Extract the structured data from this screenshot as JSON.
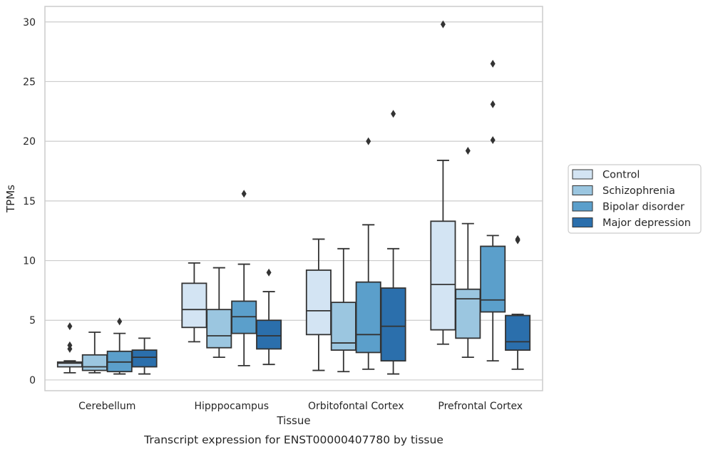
{
  "chart_data": {
    "type": "box",
    "caption": "Transcript expression for ENST00000407780 by tissue",
    "xlabel": "Tissue",
    "ylabel": "TPMs",
    "ylim": [
      -0.9,
      31.3
    ],
    "yticks": [
      0,
      5,
      10,
      15,
      20,
      25,
      30
    ],
    "grid": "horizontal",
    "legend_position": "right",
    "categories": [
      "Cerebellum",
      "Hipppocampus",
      "Orbitofontal Cortex",
      "Prefrontal Cortex"
    ],
    "series": [
      {
        "name": "Control",
        "color": "#d3e4f3",
        "boxes": [
          {
            "whisker_low": 0.6,
            "q1": 1.1,
            "median": 1.4,
            "q3": 1.5,
            "whisker_high": 1.6,
            "outliers": [
              2.6,
              2.9,
              4.5
            ]
          },
          {
            "whisker_low": 3.2,
            "q1": 4.4,
            "median": 5.9,
            "q3": 8.1,
            "whisker_high": 9.8,
            "outliers": []
          },
          {
            "whisker_low": 0.8,
            "q1": 3.8,
            "median": 5.8,
            "q3": 9.2,
            "whisker_high": 11.8,
            "outliers": []
          },
          {
            "whisker_low": 3.0,
            "q1": 4.2,
            "median": 8.0,
            "q3": 13.3,
            "whisker_high": 18.4,
            "outliers": [
              29.8
            ]
          }
        ]
      },
      {
        "name": "Schizophrenia",
        "color": "#9bc6e0",
        "boxes": [
          {
            "whisker_low": 0.6,
            "q1": 0.8,
            "median": 1.1,
            "q3": 2.1,
            "whisker_high": 4.0,
            "outliers": []
          },
          {
            "whisker_low": 1.9,
            "q1": 2.7,
            "median": 3.7,
            "q3": 5.9,
            "whisker_high": 9.4,
            "outliers": []
          },
          {
            "whisker_low": 0.7,
            "q1": 2.5,
            "median": 3.1,
            "q3": 6.5,
            "whisker_high": 11.0,
            "outliers": []
          },
          {
            "whisker_low": 1.9,
            "q1": 3.5,
            "median": 6.8,
            "q3": 7.6,
            "whisker_high": 13.1,
            "outliers": [
              19.2
            ]
          }
        ]
      },
      {
        "name": "Bipolar disorder",
        "color": "#5b9fcb",
        "boxes": [
          {
            "whisker_low": 0.5,
            "q1": 0.7,
            "median": 1.5,
            "q3": 2.4,
            "whisker_high": 3.9,
            "outliers": [
              4.9
            ]
          },
          {
            "whisker_low": 1.2,
            "q1": 3.9,
            "median": 5.3,
            "q3": 6.6,
            "whisker_high": 9.7,
            "outliers": [
              15.6
            ]
          },
          {
            "whisker_low": 0.9,
            "q1": 2.3,
            "median": 3.8,
            "q3": 8.2,
            "whisker_high": 13.0,
            "outliers": [
              20.0
            ]
          },
          {
            "whisker_low": 1.6,
            "q1": 5.7,
            "median": 6.7,
            "q3": 11.2,
            "whisker_high": 12.1,
            "outliers": [
              20.1,
              23.1,
              26.5
            ]
          }
        ]
      },
      {
        "name": "Major depression",
        "color": "#2b6fac",
        "boxes": [
          {
            "whisker_low": 0.5,
            "q1": 1.1,
            "median": 1.9,
            "q3": 2.5,
            "whisker_high": 3.5,
            "outliers": []
          },
          {
            "whisker_low": 1.3,
            "q1": 2.6,
            "median": 3.7,
            "q3": 5.0,
            "whisker_high": 7.4,
            "outliers": [
              9.0
            ]
          },
          {
            "whisker_low": 0.5,
            "q1": 1.6,
            "median": 4.5,
            "q3": 7.7,
            "whisker_high": 11.0,
            "outliers": [
              22.3
            ]
          },
          {
            "whisker_low": 0.9,
            "q1": 2.5,
            "median": 3.2,
            "q3": 5.4,
            "whisker_high": 5.5,
            "outliers": [
              11.7,
              11.8
            ]
          }
        ]
      }
    ]
  }
}
